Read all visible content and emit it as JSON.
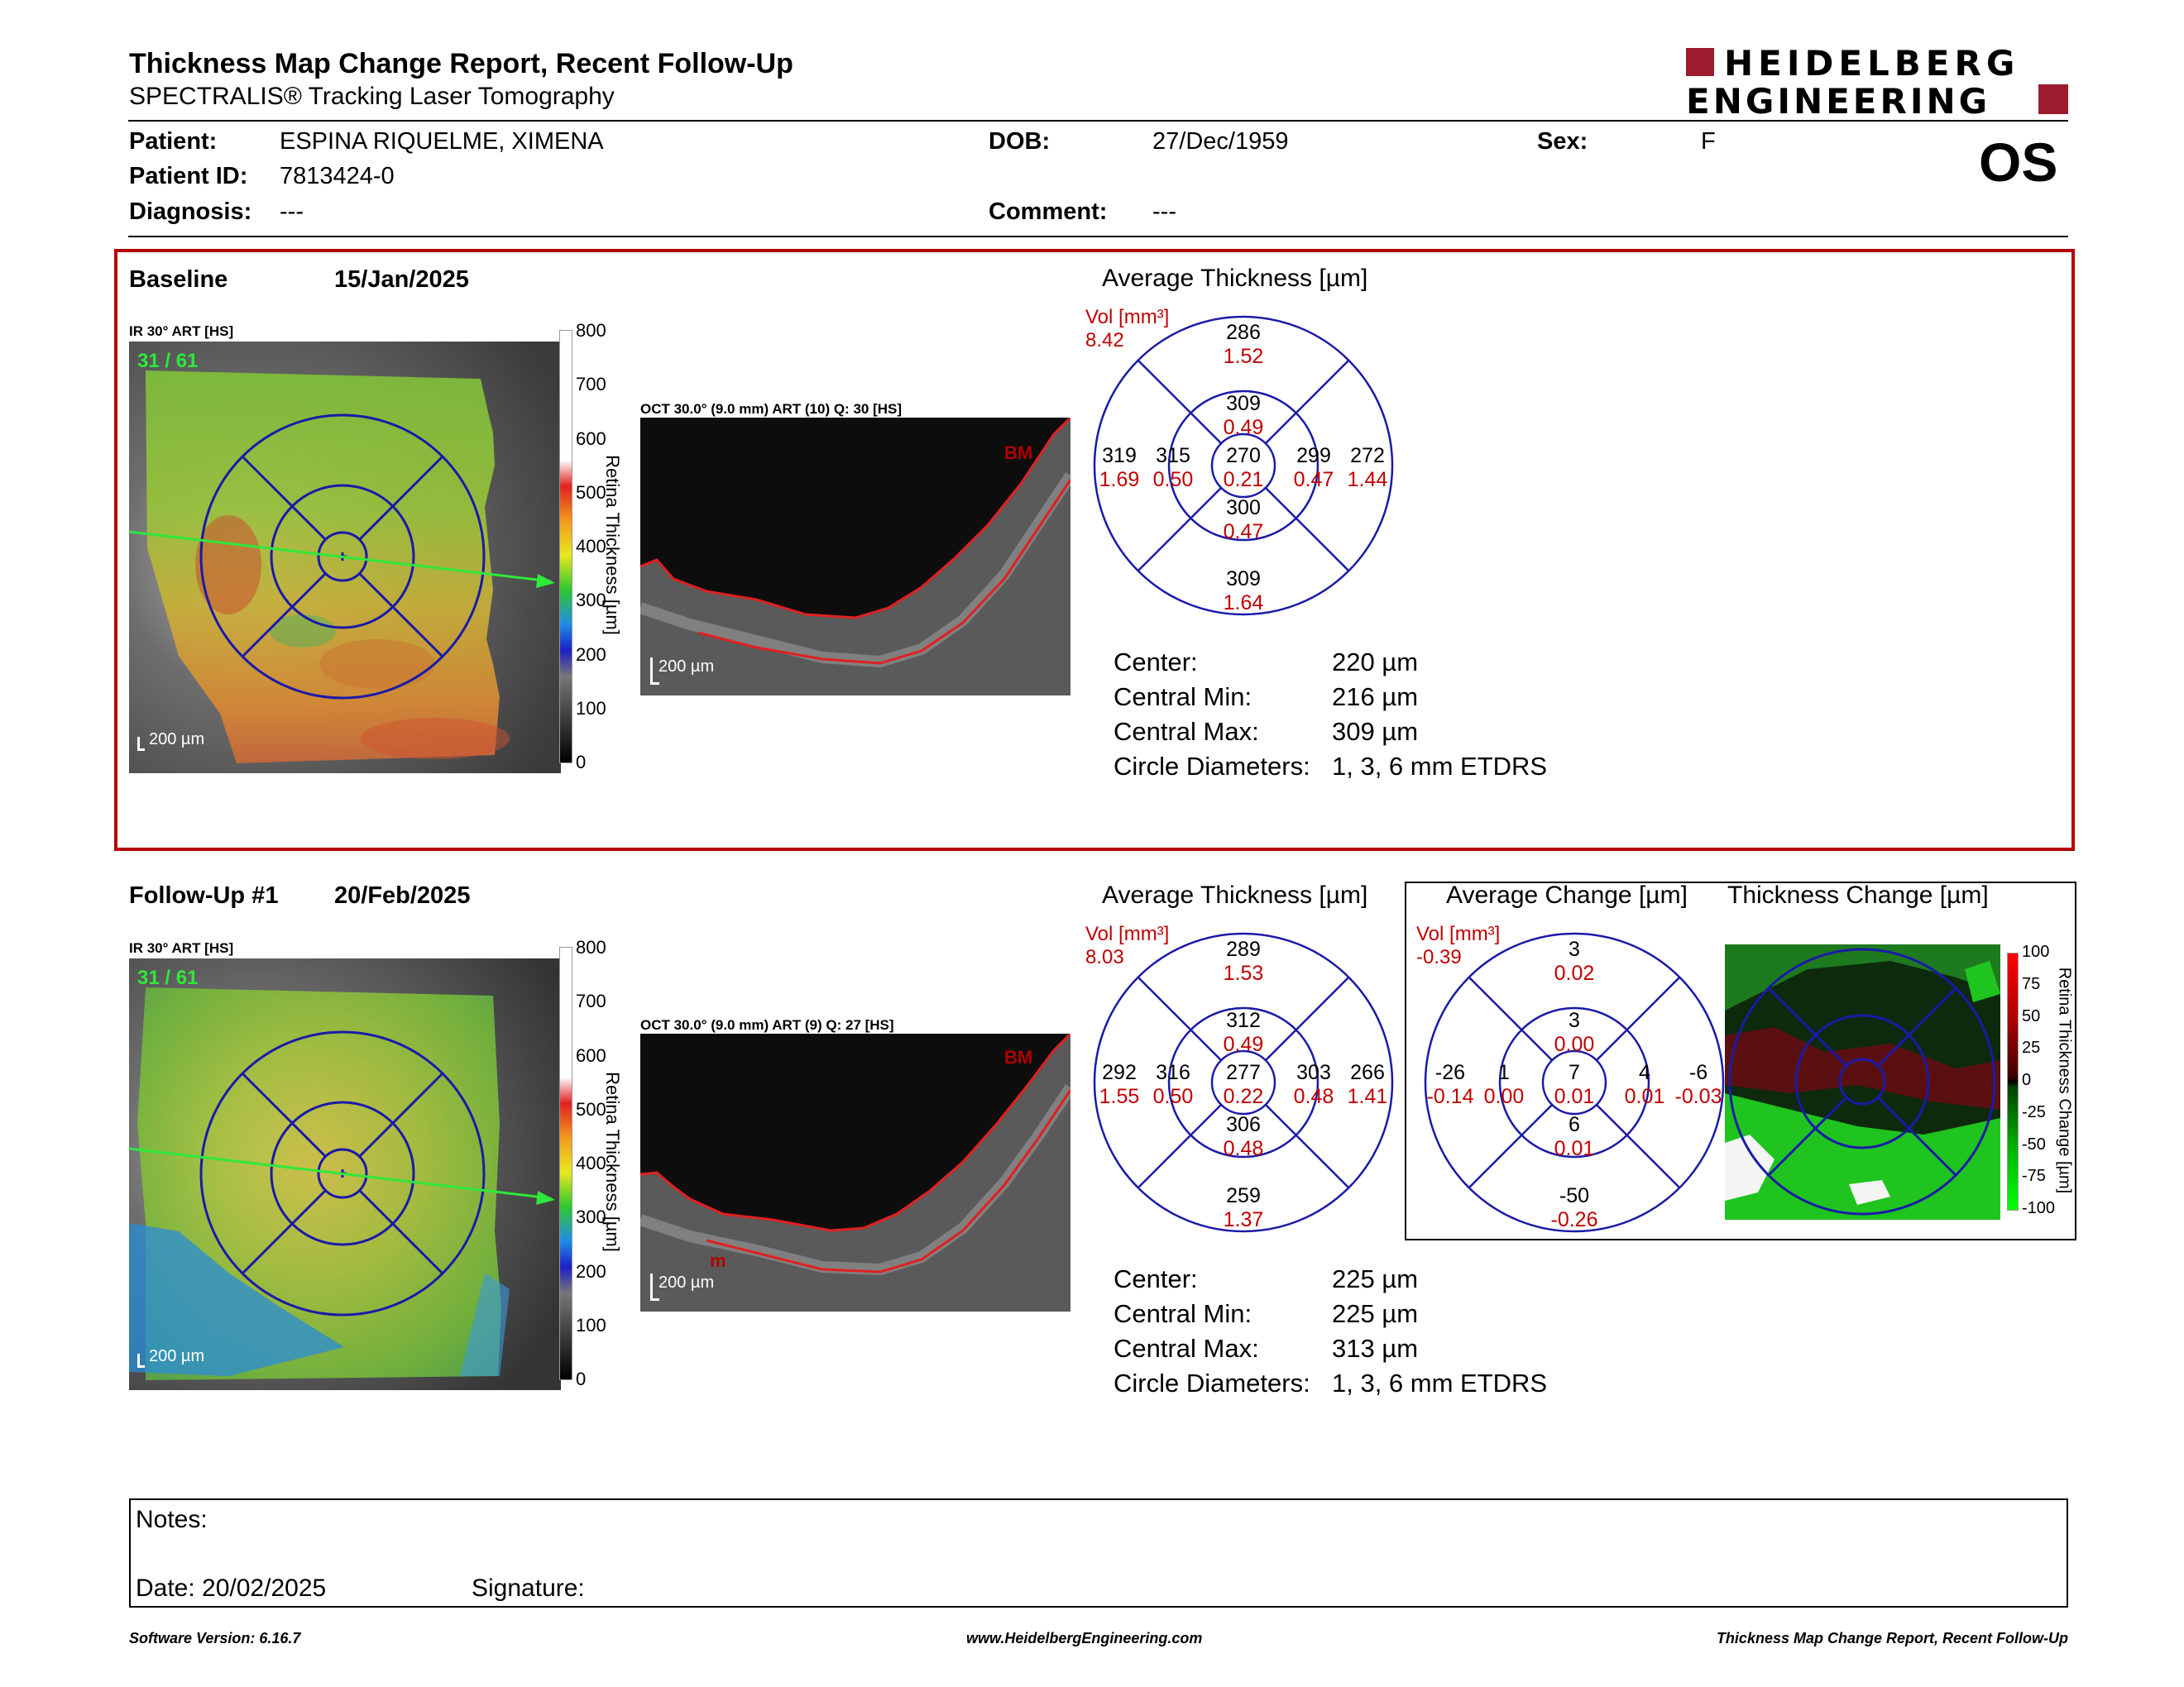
{
  "header": {
    "title": "Thickness Map Change Report, Recent Follow-Up",
    "subtitle": "SPECTRALIS® Tracking Laser Tomography",
    "logo_line1": "HEIDELBERG",
    "logo_line2": "ENGINEERING",
    "eye": "OS"
  },
  "patient": {
    "patient_label": "Patient:",
    "patient_value": "ESPINA RIQUELME, XIMENA",
    "id_label": "Patient ID:",
    "id_value": "7813424-0",
    "diagnosis_label": "Diagnosis:",
    "diagnosis_value": "---",
    "dob_label": "DOB:",
    "dob_value": "27/Dec/1959",
    "comment_label": "Comment:",
    "comment_value": "---",
    "sex_label": "Sex:",
    "sex_value": "F"
  },
  "baseline": {
    "label": "Baseline",
    "date": "15/Jan/2025",
    "ir_label": "IR 30° ART [HS]",
    "frames": "31 / 61",
    "scale": "200 µm",
    "oct_label": "OCT 30.0° (9.0 mm) ART (10) Q: 30 [HS]",
    "oct_scale": "200 µm",
    "bm": "BM",
    "cb_ticks": [
      "800",
      "700",
      "600",
      "500",
      "400",
      "300",
      "200",
      "100",
      "0"
    ],
    "cb_label": "Retina Thickness [µm]",
    "avg_title": "Average Thickness [µm]",
    "vol_label": "Vol [mm³]",
    "vol_value": "8.42",
    "etdrs": {
      "center": [
        "270",
        "0.21"
      ],
      "inner_sup": [
        "309",
        "0.49"
      ],
      "inner_inf": [
        "300",
        "0.47"
      ],
      "inner_tmp": [
        "315",
        "0.50"
      ],
      "inner_nas": [
        "299",
        "0.47"
      ],
      "outer_sup": [
        "286",
        "1.52"
      ],
      "outer_inf": [
        "309",
        "1.64"
      ],
      "outer_tmp": [
        "319",
        "1.69"
      ],
      "outer_nas": [
        "272",
        "1.44"
      ]
    },
    "stats": [
      {
        "label": "Center:",
        "value": "220 µm"
      },
      {
        "label": "Central Min:",
        "value": "216 µm"
      },
      {
        "label": "Central Max:",
        "value": "309 µm"
      },
      {
        "label": "Circle Diameters:",
        "value": "1, 3, 6 mm ETDRS"
      }
    ]
  },
  "followup": {
    "label": "Follow-Up #1",
    "date": "20/Feb/2025",
    "ir_label": "IR 30° ART [HS]",
    "frames": "31 / 61",
    "scale": "200 µm",
    "oct_label": "OCT 30.0° (9.0 mm) ART (9) Q: 27 [HS]",
    "oct_scale": "200 µm",
    "bm": "BM",
    "m": "m",
    "cb_ticks": [
      "800",
      "700",
      "600",
      "500",
      "400",
      "300",
      "200",
      "100",
      "0"
    ],
    "cb_label": "Retina Thickness [µm]",
    "avg_title": "Average Thickness [µm]",
    "vol_label": "Vol [mm³]",
    "vol_value": "8.03",
    "etdrs": {
      "center": [
        "277",
        "0.22"
      ],
      "inner_sup": [
        "312",
        "0.49"
      ],
      "inner_inf": [
        "306",
        "0.48"
      ],
      "inner_tmp": [
        "316",
        "0.50"
      ],
      "inner_nas": [
        "303",
        "0.48"
      ],
      "outer_sup": [
        "289",
        "1.53"
      ],
      "outer_inf": [
        "259",
        "1.37"
      ],
      "outer_tmp": [
        "292",
        "1.55"
      ],
      "outer_nas": [
        "266",
        "1.41"
      ]
    },
    "stats": [
      {
        "label": "Center:",
        "value": "225 µm"
      },
      {
        "label": "Central Min:",
        "value": "225 µm"
      },
      {
        "label": "Central Max:",
        "value": "313 µm"
      },
      {
        "label": "Circle Diameters:",
        "value": "1, 3, 6 mm ETDRS"
      }
    ],
    "change_title": "Average Change [µm]",
    "change_vol_label": "Vol [mm³]",
    "change_vol_value": "-0.39",
    "change": {
      "center": [
        "7",
        "0.01"
      ],
      "inner_sup": [
        "3",
        "0.00"
      ],
      "inner_inf": [
        "6",
        "0.01"
      ],
      "inner_tmp": [
        "1",
        "0.00"
      ],
      "inner_nas": [
        "4",
        "0.01"
      ],
      "outer_sup": [
        "3",
        "0.02"
      ],
      "outer_inf": [
        "-50",
        "-0.26"
      ],
      "outer_tmp": [
        "-26",
        "-0.14"
      ],
      "outer_nas": [
        "-6",
        "-0.03"
      ]
    },
    "thick_change_title": "Thickness Change [µm]",
    "change_ticks": [
      "100",
      "75",
      "50",
      "25",
      "0",
      "-25",
      "-50",
      "-75",
      "-100"
    ],
    "change_cb_label": "Retina Thickness Change [µm]"
  },
  "notes": {
    "notes_label": "Notes:",
    "date_label": "Date: 20/02/2025",
    "signature_label": "Signature:"
  },
  "footer": {
    "left": "Software Version: 6.16.7",
    "center": "www.HeidelbergEngineering.com",
    "right": "Thickness Map Change Report, Recent Follow-Up"
  },
  "colors": {
    "accent_red": "#b30000",
    "grid_blue": "#1a1aa8",
    "value_red": "#c00000"
  }
}
